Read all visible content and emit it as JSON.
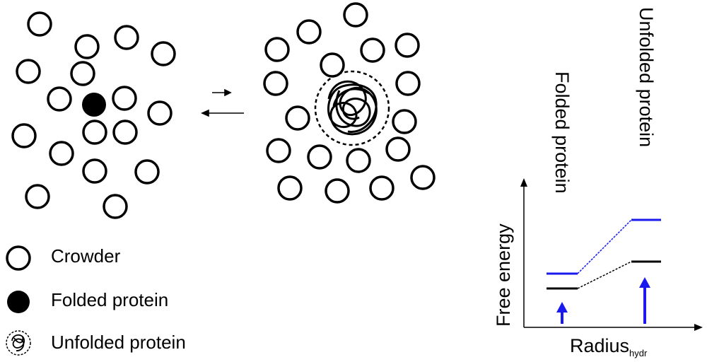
{
  "legend": {
    "crowder": "Crowder",
    "folded": "Folded protein",
    "unfolded": "Unfolded protein"
  },
  "energy_plot": {
    "ylabel": "Free energy",
    "xlabel_main": "Radius",
    "xlabel_sub": "hydr",
    "label_folded": "Folded protein",
    "label_unfolded": "Unfolded protein",
    "colors": {
      "crowded": "#1a1aee",
      "dilute": "#000000"
    }
  }
}
